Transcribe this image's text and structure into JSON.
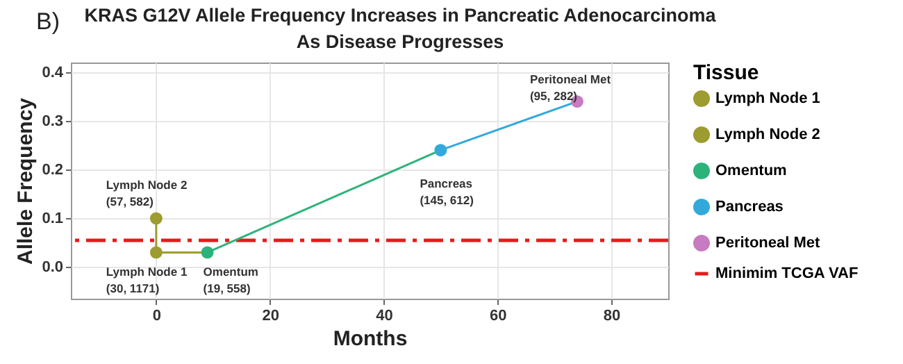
{
  "chart_data": {
    "type": "scatter",
    "title": "KRAS G12V Allele Frequency Increases in Pancreatic Adenocarcinoma\nAs Disease Progresses",
    "xlabel": "Months",
    "ylabel": "Allele Frequency",
    "legend_title": "Tissue",
    "series": [
      {
        "type": "line",
        "color": "#9c9c30",
        "x": [
          0,
          0
        ],
        "values": [
          0.1,
          0.03
        ]
      },
      {
        "type": "line",
        "color": "#9c9c30",
        "x": [
          0,
          9
        ],
        "values": [
          0.03,
          0.03
        ]
      },
      {
        "type": "line",
        "color": "#2db37a",
        "x": [
          9,
          50
        ],
        "values": [
          0.03,
          0.24
        ]
      },
      {
        "type": "line",
        "color": "#33a9db",
        "x": [
          50,
          74
        ],
        "values": [
          0.24,
          0.34
        ]
      },
      {
        "name": "Lymph Node 1",
        "color": "#9c9c30",
        "marker": "circle",
        "x": [
          0
        ],
        "values": [
          0.03
        ]
      },
      {
        "name": "Lymph Node 2",
        "color": "#9c9c30",
        "marker": "circle",
        "x": [
          0
        ],
        "values": [
          0.1
        ]
      },
      {
        "name": "Omentum",
        "color": "#2db37a",
        "marker": "circle",
        "x": [
          9
        ],
        "values": [
          0.03
        ]
      },
      {
        "name": "Pancreas",
        "color": "#33a9db",
        "marker": "circle",
        "x": [
          50
        ],
        "values": [
          0.24
        ]
      },
      {
        "name": "Peritoneal Met",
        "color": "#c77bc0",
        "marker": "circle",
        "x": [
          74
        ],
        "values": [
          0.34
        ]
      }
    ],
    "ref_lines": [
      {
        "axis": "y",
        "value": 0.055,
        "label": "Minimim TCGA VAF",
        "color": "#e8191c",
        "line_style": "dashdot"
      }
    ],
    "annotations": [
      "B)",
      {
        "text": "Lymph Node 2 (57, 582)",
        "x": 0,
        "y": 0.1
      },
      {
        "text": "Lymph Node 1 (30, 1171)",
        "x": 0,
        "y": 0.03
      },
      {
        "text": "Omentum (19, 558)",
        "x": 9,
        "y": 0.03
      },
      {
        "text": "Pancreas (145, 612)",
        "x": 50,
        "y": 0.24
      },
      {
        "text": "Peritoneal Met (95, 282)",
        "x": 74,
        "y": 0.34
      }
    ],
    "xlim": [
      -15,
      90
    ],
    "xticks": [
      0,
      20,
      40,
      60,
      80
    ],
    "ylim": [
      -0.065,
      0.42
    ],
    "yticks": [
      {
        "value": 0,
        "label": "0.0"
      },
      0.1,
      0.2,
      0.3,
      0.4
    ],
    "grid": true,
    "legend": "right"
  }
}
